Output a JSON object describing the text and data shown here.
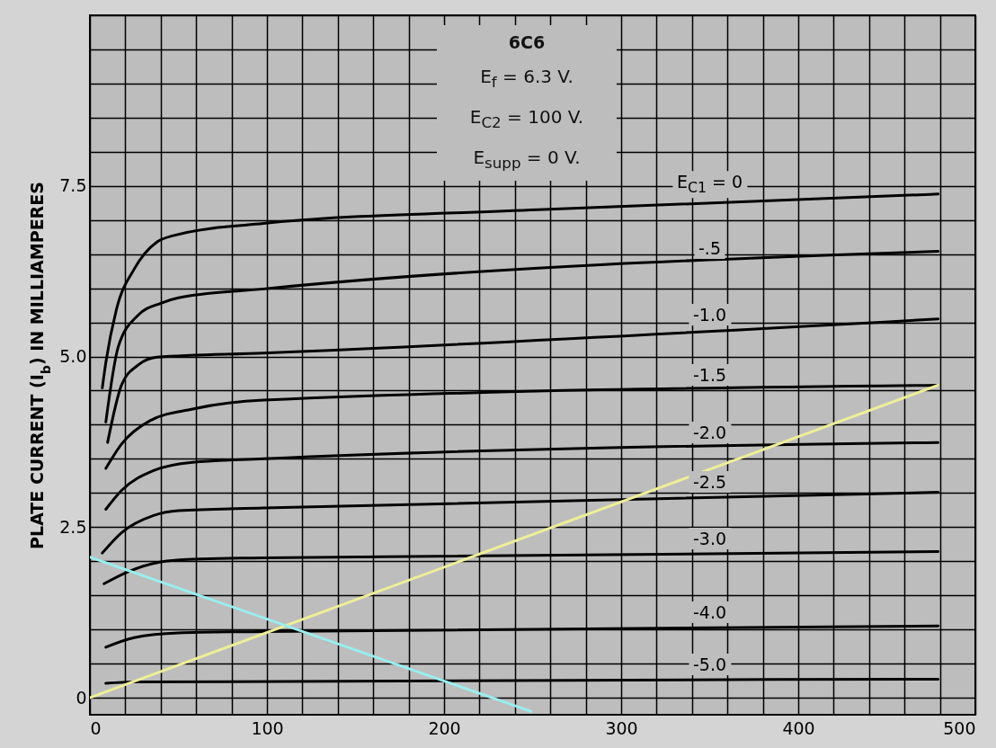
{
  "chart_data": {
    "type": "line",
    "title": "6C6",
    "ylabel": "PLATE CURRENT (I$_{b}$) IN MILLIAMPERES",
    "annotations": [
      "E$_{f}$ = 6.3 V.",
      "E$_{C2}$ = 100 V.",
      "E$_{supp}$ = 0 V."
    ],
    "xlim": [
      0,
      500
    ],
    "xticks": [
      0,
      100,
      200,
      300,
      400,
      500
    ],
    "ylim": [
      -0.25,
      10
    ],
    "yticks": [
      0,
      2.5,
      {
        "value": 5,
        "label": "5.0"
      },
      7.5
    ],
    "grid": true,
    "line_style": "solid",
    "series": [
      {
        "name": "E$_{C1}$ = 0",
        "color": "#000000",
        "x": [
          7,
          9,
          15,
          25,
          38,
          47,
          98,
          253,
          479
        ],
        "values": [
          4.54,
          4.91,
          5.69,
          6.28,
          6.68,
          6.77,
          6.95,
          7.15,
          7.38
        ]
      },
      {
        "name": "-.5",
        "color": "#000000",
        "x": [
          9,
          16,
          27,
          40,
          50,
          98,
          479
        ],
        "values": [
          4.04,
          5.14,
          5.6,
          5.78,
          5.86,
          5.99,
          6.54
        ]
      },
      {
        "name": "-1.0",
        "color": "#000000",
        "x": [
          10,
          18,
          27,
          38,
          98,
          479
        ],
        "values": [
          3.74,
          4.59,
          4.87,
          4.99,
          5.05,
          5.55
        ]
      },
      {
        "name": "-1.5",
        "color": "#000000",
        "x": [
          9,
          18,
          34,
          58,
          98,
          479
        ],
        "values": [
          3.36,
          3.72,
          4.06,
          4.23,
          4.36,
          4.58
        ]
      },
      {
        "name": "-2.0",
        "color": "#000000",
        "x": [
          9,
          18,
          36,
          58,
          98,
          479
        ],
        "values": [
          2.76,
          3.04,
          3.33,
          3.45,
          3.5,
          3.74
        ]
      },
      {
        "name": "-2.5",
        "color": "#000000",
        "x": [
          7,
          18,
          36,
          50,
          98,
          479
        ],
        "values": [
          2.12,
          2.42,
          2.67,
          2.74,
          2.78,
          3.01
        ]
      },
      {
        "name": "-3.0",
        "color": "#000000",
        "x": [
          8,
          22,
          40,
          58,
          98,
          479
        ],
        "values": [
          1.67,
          1.85,
          1.99,
          2.03,
          2.05,
          2.14
        ]
      },
      {
        "name": "-4.0",
        "color": "#000000",
        "x": [
          9,
          25,
          50,
          98,
          479
        ],
        "values": [
          0.74,
          0.88,
          0.95,
          0.97,
          1.05
        ]
      },
      {
        "name": "-5.0",
        "color": "#000000",
        "x": [
          9,
          25,
          479
        ],
        "values": [
          0.21,
          0.23,
          0.27
        ]
      },
      {
        "color": "#eeee99",
        "x": [
          0,
          479
        ],
        "values": [
          0,
          4.58
        ]
      },
      {
        "color": "#99eeee",
        "x": [
          0,
          249
        ],
        "values": [
          2.06,
          -0.2
        ]
      }
    ]
  }
}
